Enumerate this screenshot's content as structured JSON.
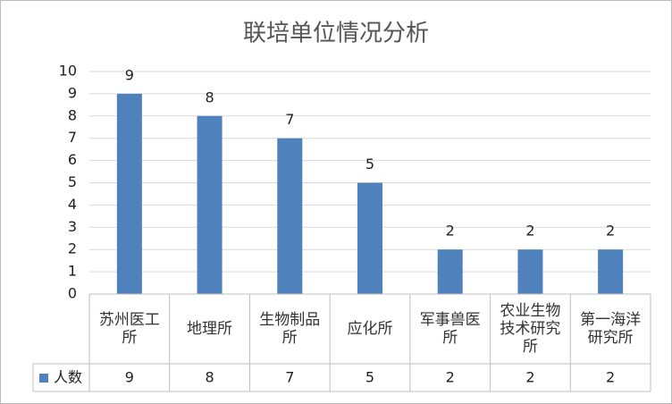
{
  "chart_data": {
    "type": "bar",
    "title": "联培单位情况分析",
    "categories": [
      "苏州医工所",
      "地理所",
      "生物制品所",
      "应化所",
      "军事兽医所",
      "农业生物技术研究所",
      "第一海洋研究所"
    ],
    "series": [
      {
        "name": "人数",
        "color": "#4f81bd",
        "values": [
          9,
          8,
          7,
          5,
          2,
          2,
          2
        ]
      }
    ],
    "ylim": [
      0,
      10
    ],
    "yticks": [
      0,
      1,
      2,
      3,
      4,
      5,
      6,
      7,
      8,
      9,
      10
    ],
    "grid": true,
    "data_table": true
  }
}
